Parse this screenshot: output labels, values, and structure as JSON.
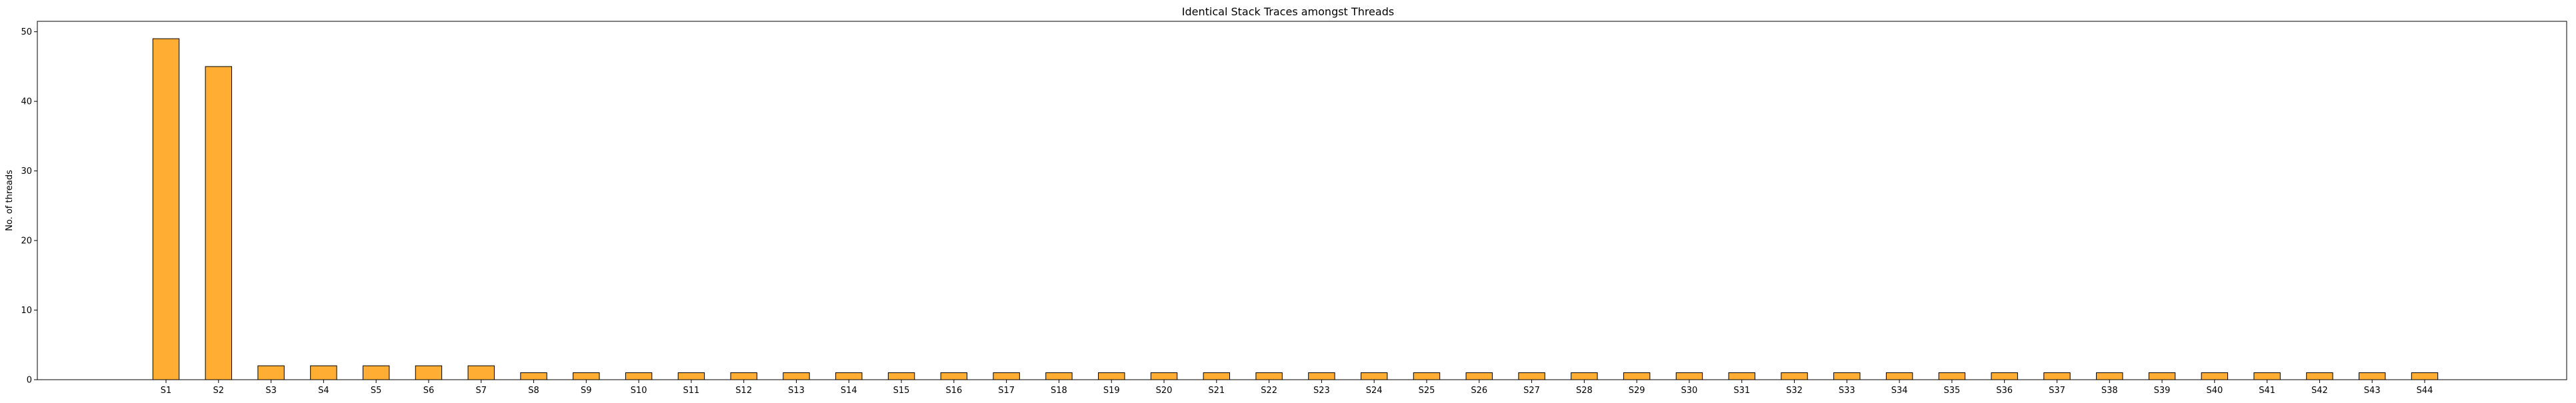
{
  "chart_data": {
    "type": "bar",
    "title": "Identical Stack Traces amongst Threads",
    "xlabel": "",
    "ylabel": "No. of threads",
    "ylim": [
      0,
      51.5
    ],
    "yticks": [
      0,
      10,
      20,
      30,
      40,
      50
    ],
    "grid": false,
    "legend": "none",
    "bar_color": "#ffae33",
    "edge_color": "#000000",
    "categories": [
      "S1",
      "S2",
      "S3",
      "S4",
      "S5",
      "S6",
      "S7",
      "S8",
      "S9",
      "S10",
      "S11",
      "S12",
      "S13",
      "S14",
      "S15",
      "S16",
      "S17",
      "S18",
      "S19",
      "S20",
      "S21",
      "S22",
      "S23",
      "S24",
      "S25",
      "S26",
      "S27",
      "S28",
      "S29",
      "S30",
      "S31",
      "S32",
      "S33",
      "S34",
      "S35",
      "S36",
      "S37",
      "S38",
      "S39",
      "S40",
      "S41",
      "S42",
      "S43",
      "S44"
    ],
    "values": [
      49,
      45,
      2,
      2,
      2,
      2,
      2,
      1,
      1,
      1,
      1,
      1,
      1,
      1,
      1,
      1,
      1,
      1,
      1,
      1,
      1,
      1,
      1,
      1,
      1,
      1,
      1,
      1,
      1,
      1,
      1,
      1,
      1,
      1,
      1,
      1,
      1,
      1,
      1,
      1,
      1,
      1,
      1,
      1
    ]
  }
}
